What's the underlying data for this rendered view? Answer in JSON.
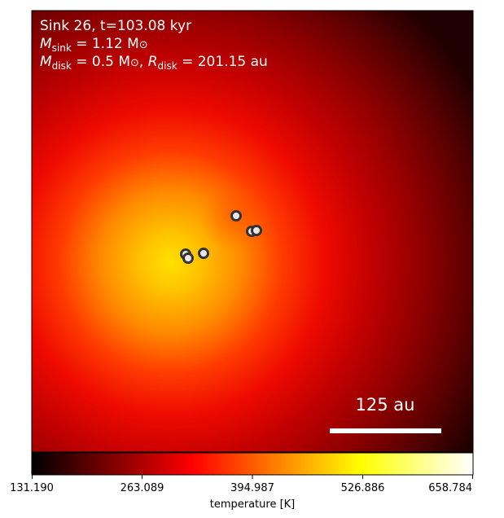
{
  "annotation": {
    "title": "Sink 26, t=103.08 kyr",
    "msink_symbol": "M",
    "msink_sub": "sink",
    "msink_value": " = 1.12 M",
    "msink_sun": "⊙",
    "mdisk_symbol": "M",
    "mdisk_sub": "disk",
    "mdisk_value": " = 0.5 M",
    "mdisk_sun": "⊙",
    "rdisk_sep": ", ",
    "rdisk_symbol": "R",
    "rdisk_sub": "disk",
    "rdisk_value": " = 201.15 au"
  },
  "scale_bar": {
    "label": "125 au"
  },
  "colorbar": {
    "label": "temperature [K]",
    "colormap": "hot",
    "min": 131.19,
    "max": 658.784,
    "ticks": [
      "131.190",
      "263.089",
      "394.987",
      "526.886",
      "658.784"
    ]
  },
  "colors": {
    "map_dark": "#200000",
    "map_red": "#ff1a00",
    "map_yellow": "#ffd400",
    "sink_fill": "#e8e8e8",
    "sink_edge": "#333333",
    "scale_bar": "#ffffff"
  },
  "sink_markers": [
    "sink-1",
    "sink-2",
    "sink-3",
    "sink-4",
    "sink-5",
    "sink-6"
  ]
}
